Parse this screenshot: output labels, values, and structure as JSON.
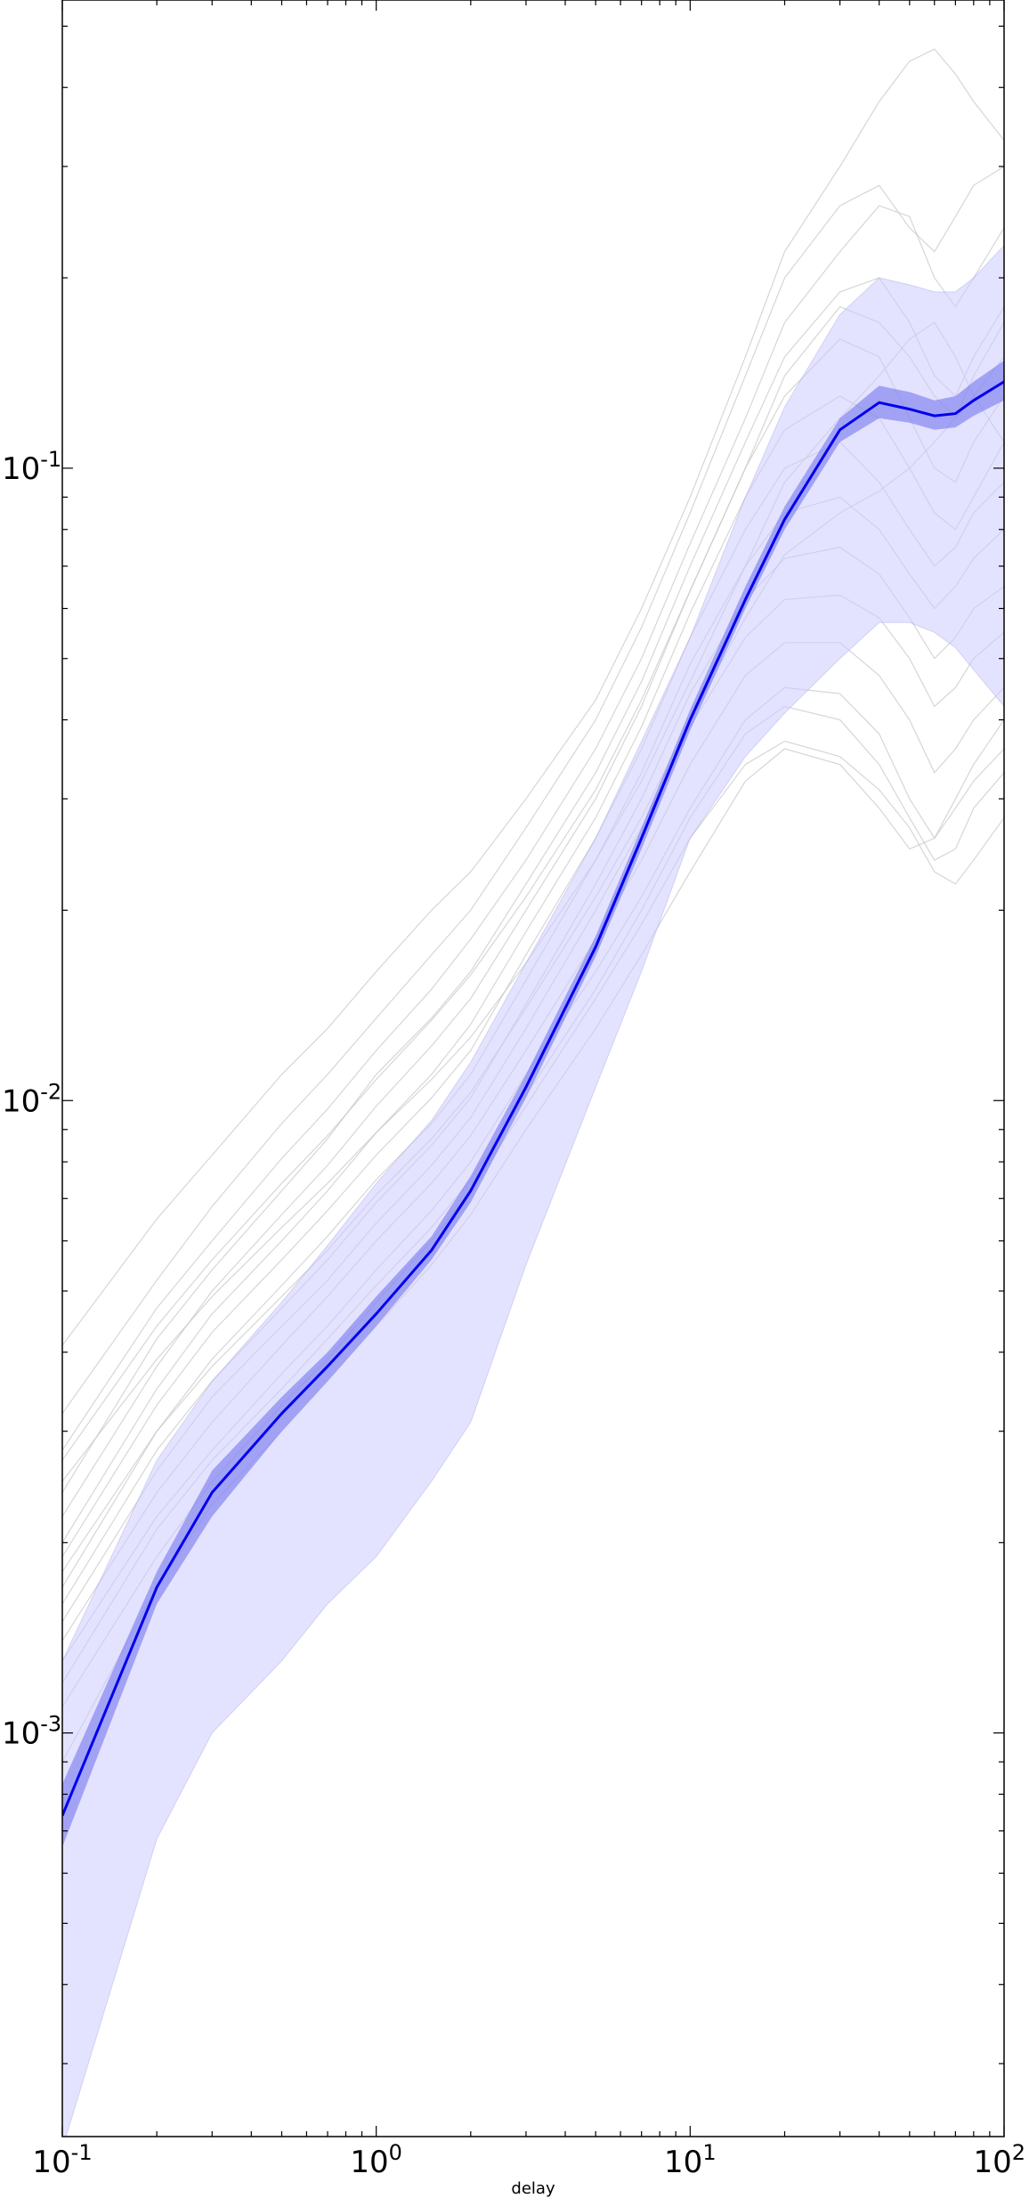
{
  "chart_data": {
    "type": "line",
    "title": "",
    "xlabel": "delay",
    "ylabel": "",
    "xscale": "log",
    "yscale": "log",
    "xlim": [
      0.1,
      100
    ],
    "ylim": [
      0.00023,
      0.55
    ],
    "grid": false,
    "x_tick_labels": [
      {
        "base": "10",
        "exp": "-1"
      },
      {
        "base": "10",
        "exp": "0"
      },
      {
        "base": "10",
        "exp": "1"
      },
      {
        "base": "10",
        "exp": "2"
      }
    ],
    "y_tick_labels": [
      {
        "base": "10",
        "exp": "-3"
      },
      {
        "base": "10",
        "exp": "-2"
      },
      {
        "base": "10",
        "exp": "-1"
      }
    ],
    "x_ticks": [
      0.1,
      1,
      10,
      100
    ],
    "y_ticks": [
      0.001,
      0.01,
      0.1
    ],
    "colors": {
      "mean_line": "#0000ee",
      "inner_band": "#7777ee",
      "outer_band": "#ccccff",
      "individual_lines": "#c8c8c8"
    },
    "x": [
      0.1,
      0.2,
      0.3,
      0.5,
      0.7,
      1,
      1.5,
      2,
      3,
      5,
      7,
      10,
      15,
      20,
      30,
      40,
      50,
      60,
      70,
      80,
      100
    ],
    "series": [
      {
        "role": "mean",
        "values": [
          0.00074,
          0.0017,
          0.0024,
          0.0032,
          0.0038,
          0.0046,
          0.0058,
          0.0072,
          0.0105,
          0.0175,
          0.026,
          0.04,
          0.062,
          0.083,
          0.115,
          0.127,
          0.124,
          0.121,
          0.122,
          0.128,
          0.137
        ]
      },
      {
        "role": "inner_band_lower",
        "values": [
          0.00066,
          0.0016,
          0.0022,
          0.003,
          0.0036,
          0.0044,
          0.0056,
          0.0069,
          0.0101,
          0.0169,
          0.025,
          0.0385,
          0.06,
          0.08,
          0.11,
          0.12,
          0.118,
          0.115,
          0.116,
          0.121,
          0.128
        ]
      },
      {
        "role": "inner_band_upper",
        "values": [
          0.00083,
          0.0018,
          0.0026,
          0.0034,
          0.004,
          0.0049,
          0.0061,
          0.0076,
          0.011,
          0.0182,
          0.027,
          0.0415,
          0.065,
          0.087,
          0.12,
          0.135,
          0.132,
          0.128,
          0.13,
          0.137,
          0.148
        ]
      },
      {
        "role": "outer_band_lower",
        "values": [
          0.00022,
          0.00068,
          0.001,
          0.0013,
          0.0016,
          0.0019,
          0.0025,
          0.0031,
          0.0055,
          0.0105,
          0.016,
          0.026,
          0.035,
          0.041,
          0.05,
          0.057,
          0.057,
          0.055,
          0.052,
          0.048,
          0.042
        ]
      },
      {
        "role": "outer_band_upper",
        "values": [
          0.0013,
          0.0027,
          0.0036,
          0.0048,
          0.0059,
          0.0074,
          0.0093,
          0.0115,
          0.0165,
          0.026,
          0.037,
          0.054,
          0.09,
          0.125,
          0.175,
          0.2,
          0.195,
          0.19,
          0.19,
          0.2,
          0.225
        ]
      }
    ],
    "individual_series": [
      [
        0.0041,
        0.0065,
        0.0082,
        0.011,
        0.013,
        0.016,
        0.02,
        0.023,
        0.03,
        0.043,
        0.06,
        0.09,
        0.15,
        0.22,
        0.3,
        0.38,
        0.44,
        0.46,
        0.42,
        0.38,
        0.33
      ],
      [
        0.0032,
        0.0052,
        0.0068,
        0.0092,
        0.011,
        0.0135,
        0.017,
        0.02,
        0.027,
        0.04,
        0.056,
        0.085,
        0.14,
        0.2,
        0.26,
        0.28,
        0.24,
        0.22,
        0.25,
        0.28,
        0.3
      ],
      [
        0.0028,
        0.0047,
        0.006,
        0.0081,
        0.0097,
        0.012,
        0.015,
        0.018,
        0.024,
        0.036,
        0.05,
        0.076,
        0.12,
        0.17,
        0.22,
        0.26,
        0.25,
        0.2,
        0.18,
        0.2,
        0.24
      ],
      [
        0.0024,
        0.0042,
        0.0054,
        0.0072,
        0.0087,
        0.011,
        0.0135,
        0.016,
        0.022,
        0.033,
        0.046,
        0.07,
        0.11,
        0.15,
        0.19,
        0.2,
        0.17,
        0.14,
        0.13,
        0.15,
        0.18
      ],
      [
        0.0022,
        0.0038,
        0.005,
        0.0066,
        0.0079,
        0.0098,
        0.0122,
        0.0145,
        0.02,
        0.03,
        0.042,
        0.064,
        0.1,
        0.13,
        0.16,
        0.15,
        0.12,
        0.1,
        0.095,
        0.11,
        0.13
      ],
      [
        0.002,
        0.0035,
        0.0046,
        0.006,
        0.0072,
        0.0089,
        0.011,
        0.0132,
        0.0185,
        0.028,
        0.039,
        0.059,
        0.09,
        0.115,
        0.13,
        0.12,
        0.1,
        0.085,
        0.08,
        0.09,
        0.11
      ],
      [
        0.0019,
        0.0033,
        0.0043,
        0.0056,
        0.0067,
        0.0082,
        0.0101,
        0.012,
        0.017,
        0.026,
        0.036,
        0.054,
        0.08,
        0.1,
        0.11,
        0.095,
        0.08,
        0.07,
        0.075,
        0.085,
        0.095
      ],
      [
        0.0017,
        0.003,
        0.0039,
        0.0051,
        0.0061,
        0.0075,
        0.0092,
        0.011,
        0.0155,
        0.024,
        0.033,
        0.049,
        0.07,
        0.085,
        0.09,
        0.08,
        0.068,
        0.06,
        0.065,
        0.072,
        0.08
      ],
      [
        0.0016,
        0.0028,
        0.0036,
        0.0047,
        0.0056,
        0.0069,
        0.0085,
        0.0101,
        0.0142,
        0.022,
        0.03,
        0.044,
        0.062,
        0.072,
        0.075,
        0.068,
        0.058,
        0.05,
        0.054,
        0.06,
        0.065
      ],
      [
        0.0015,
        0.0026,
        0.0034,
        0.0044,
        0.0052,
        0.0064,
        0.0079,
        0.0094,
        0.013,
        0.02,
        0.027,
        0.039,
        0.054,
        0.062,
        0.063,
        0.058,
        0.05,
        0.042,
        0.045,
        0.05,
        0.055
      ],
      [
        0.0014,
        0.0024,
        0.0031,
        0.0041,
        0.0049,
        0.006,
        0.0074,
        0.0088,
        0.012,
        0.018,
        0.024,
        0.034,
        0.047,
        0.053,
        0.053,
        0.047,
        0.04,
        0.033,
        0.036,
        0.04,
        0.045
      ],
      [
        0.0013,
        0.0022,
        0.0028,
        0.0037,
        0.0044,
        0.0054,
        0.0067,
        0.008,
        0.011,
        0.016,
        0.021,
        0.029,
        0.04,
        0.045,
        0.044,
        0.038,
        0.03,
        0.026,
        0.029,
        0.032,
        0.036
      ],
      [
        0.0009,
        0.0017,
        0.0023,
        0.003,
        0.0036,
        0.0044,
        0.0055,
        0.0066,
        0.009,
        0.013,
        0.017,
        0.023,
        0.032,
        0.036,
        0.034,
        0.029,
        0.025,
        0.026,
        0.03,
        0.034,
        0.04
      ],
      [
        0.0025,
        0.0039,
        0.0049,
        0.0063,
        0.0074,
        0.0089,
        0.0108,
        0.0126,
        0.0165,
        0.024,
        0.032,
        0.046,
        0.07,
        0.095,
        0.12,
        0.14,
        0.16,
        0.17,
        0.15,
        0.13,
        0.11
      ],
      [
        0.0027,
        0.0044,
        0.0056,
        0.0074,
        0.0088,
        0.0108,
        0.0134,
        0.0158,
        0.021,
        0.031,
        0.043,
        0.064,
        0.1,
        0.14,
        0.18,
        0.17,
        0.15,
        0.13,
        0.12,
        0.14,
        0.17
      ],
      [
        0.0018,
        0.003,
        0.0038,
        0.0049,
        0.0058,
        0.0071,
        0.0087,
        0.0103,
        0.014,
        0.021,
        0.028,
        0.04,
        0.058,
        0.073,
        0.085,
        0.092,
        0.1,
        0.11,
        0.12,
        0.13,
        0.15
      ],
      [
        0.0012,
        0.0021,
        0.0027,
        0.0035,
        0.0042,
        0.0051,
        0.0063,
        0.0075,
        0.0102,
        0.015,
        0.02,
        0.028,
        0.038,
        0.042,
        0.04,
        0.034,
        0.028,
        0.024,
        0.025,
        0.029,
        0.033
      ],
      [
        0.0011,
        0.0019,
        0.0025,
        0.0033,
        0.0039,
        0.0048,
        0.006,
        0.0072,
        0.0098,
        0.0145,
        0.019,
        0.026,
        0.034,
        0.037,
        0.035,
        0.031,
        0.027,
        0.023,
        0.022,
        0.024,
        0.028
      ]
    ]
  }
}
